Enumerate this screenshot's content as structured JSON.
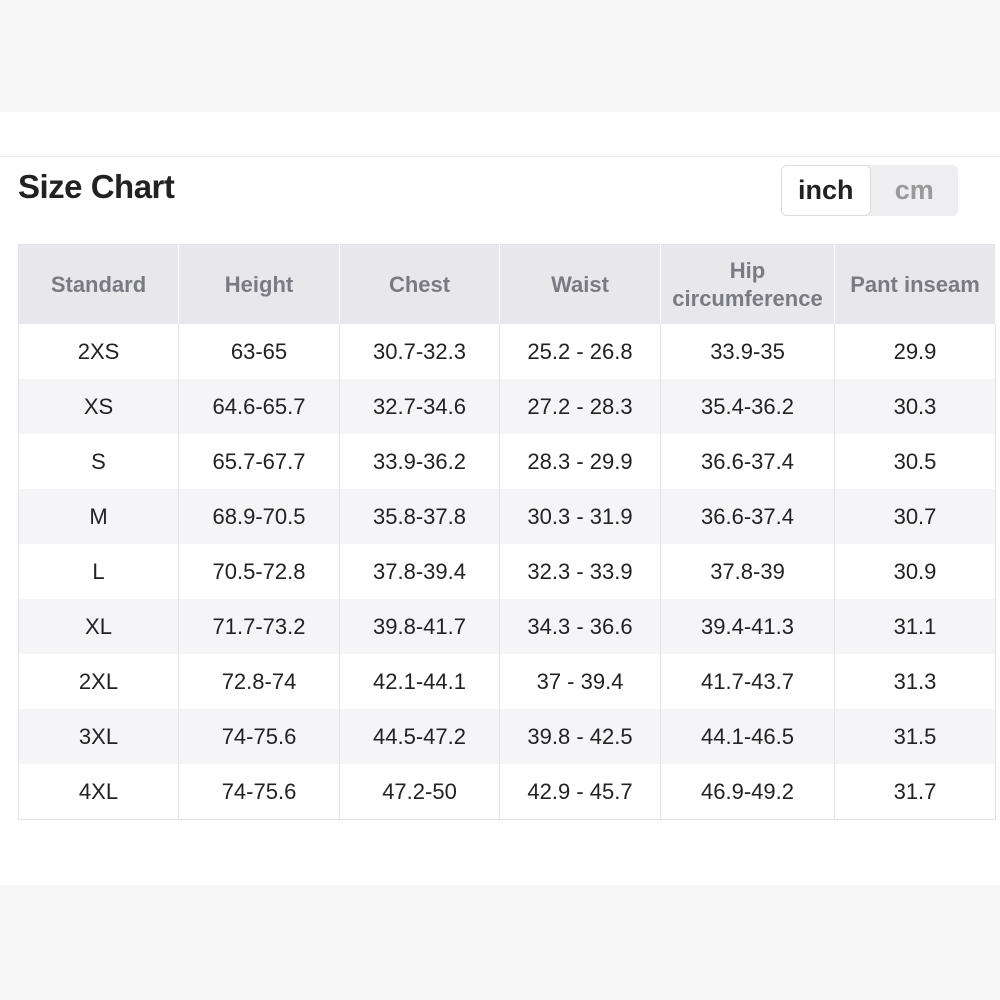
{
  "header": {
    "title": "Size Chart",
    "units": [
      "inch",
      "cm"
    ]
  },
  "table": {
    "columns": [
      "Standard",
      "Height",
      "Chest",
      "Waist",
      "Hip circumference",
      "Pant inseam"
    ],
    "rows": [
      [
        "2XS",
        "63-65",
        "30.7-32.3",
        "25.2 - 26.8",
        "33.9-35",
        "29.9"
      ],
      [
        "XS",
        "64.6-65.7",
        "32.7-34.6",
        "27.2 - 28.3",
        "35.4-36.2",
        "30.3"
      ],
      [
        "S",
        "65.7-67.7",
        "33.9-36.2",
        "28.3 - 29.9",
        "36.6-37.4",
        "30.5"
      ],
      [
        "M",
        "68.9-70.5",
        "35.8-37.8",
        "30.3 - 31.9",
        "36.6-37.4",
        "30.7"
      ],
      [
        "L",
        "70.5-72.8",
        "37.8-39.4",
        "32.3 - 33.9",
        "37.8-39",
        "30.9"
      ],
      [
        "XL",
        "71.7-73.2",
        "39.8-41.7",
        "34.3 - 36.6",
        "39.4-41.3",
        "31.1"
      ],
      [
        "2XL",
        "72.8-74",
        "42.1-44.1",
        "37 - 39.4",
        "41.7-43.7",
        "31.3"
      ],
      [
        "3XL",
        "74-75.6",
        "44.5-47.2",
        "39.8 - 42.5",
        "44.1-46.5",
        "31.5"
      ],
      [
        "4XL",
        "74-75.6",
        "47.2-50",
        "42.9 - 45.7",
        "46.9-49.2",
        "31.7"
      ]
    ]
  }
}
